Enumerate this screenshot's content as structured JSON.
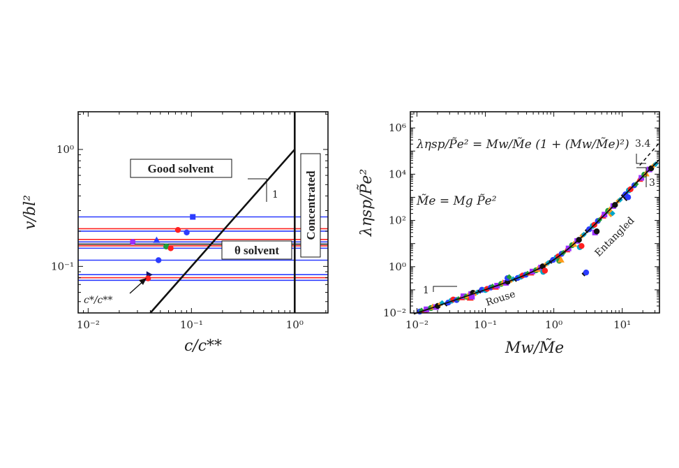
{
  "left_panel": {
    "ylabel": "v/bl²",
    "xlabel": "c/c**",
    "x_ticks": [
      {
        "v": 0.01,
        "label": "10⁻²"
      },
      {
        "v": 0.1,
        "label": "10⁻¹"
      },
      {
        "v": 1,
        "label": "10⁰"
      }
    ],
    "y_ticks": [
      {
        "v": 0.1,
        "label": "10⁻¹"
      },
      {
        "v": 1,
        "label": "10⁰"
      }
    ],
    "good_solvent_label": "Good solvent",
    "theta_solvent_label": "θ solvent",
    "concentrated_label": "Concentrated",
    "slope_label": "1",
    "arrow_label": "c*/c**"
  },
  "right_panel": {
    "ylabel": "ληsp/P̃e²",
    "xlabel": "Mw/M̃e",
    "x_ticks": [
      {
        "v": 0.01,
        "label": "10⁻²"
      },
      {
        "v": 0.1,
        "label": "10⁻¹"
      },
      {
        "v": 1,
        "label": "10⁰"
      },
      {
        "v": 10,
        "label": "10¹"
      }
    ],
    "y_ticks": [
      {
        "v": 0.01,
        "label": "10⁻²"
      },
      {
        "v": 1,
        "label": "10⁰"
      },
      {
        "v": 100,
        "label": "10²"
      },
      {
        "v": 10000,
        "label": "10⁴"
      },
      {
        "v": 1000000,
        "label": "10⁶"
      }
    ],
    "equation_main": "ληsp/P̃e² = Mw/M̃e (1 + (Mw/M̃e)²)",
    "equation_me": "M̃e = Mg P̃e²",
    "rouse_label": "Rouse",
    "entangled_label": "Entangled",
    "slope_1_label": "1",
    "slope_3_label": "3",
    "slope_34_label": "3.4"
  },
  "chart_data": [
    {
      "type": "line",
      "panel": "left",
      "xscale": "log",
      "yscale": "log",
      "xlim": [
        0.008,
        2.1
      ],
      "ylim": [
        0.04,
        2.1
      ],
      "xlabel": "c/c**",
      "ylabel": "v/bl²",
      "boundaries": {
        "diagonal": [
          [
            0.035,
            0.035
          ],
          [
            1.0,
            1.0
          ]
        ],
        "vertical_x": 1.0
      },
      "horizontal_lines": [
        {
          "y": 0.265,
          "color": "#2b3cff"
        },
        {
          "y": 0.21,
          "color": "#ff2020"
        },
        {
          "y": 0.2,
          "color": "#2b3cff"
        },
        {
          "y": 0.17,
          "color": "#ff2020"
        },
        {
          "y": 0.162,
          "color": "#2b3cff"
        },
        {
          "y": 0.155,
          "color": "#111111"
        },
        {
          "y": 0.15,
          "color": "#ff2020"
        },
        {
          "y": 0.143,
          "color": "#2b3cff"
        },
        {
          "y": 0.113,
          "color": "#2b3cff"
        },
        {
          "y": 0.085,
          "color": "#2b3cff"
        },
        {
          "y": 0.08,
          "color": "#ff2020"
        },
        {
          "y": 0.076,
          "color": "#2b3cff"
        }
      ],
      "points": [
        {
          "x": 0.103,
          "y": 0.265,
          "color": "#2b3cff",
          "marker": "square"
        },
        {
          "x": 0.074,
          "y": 0.205,
          "color": "#ff2020",
          "marker": "circle"
        },
        {
          "x": 0.09,
          "y": 0.195,
          "color": "#2b3cff",
          "marker": "circle"
        },
        {
          "x": 0.027,
          "y": 0.162,
          "color": "#9b30ff",
          "marker": "circle"
        },
        {
          "x": 0.046,
          "y": 0.168,
          "color": "#2b3cff",
          "marker": "triangle"
        },
        {
          "x": 0.057,
          "y": 0.148,
          "color": "#1f9e3a",
          "marker": "circle"
        },
        {
          "x": 0.063,
          "y": 0.143,
          "color": "#ff2020",
          "marker": "circle"
        },
        {
          "x": 0.048,
          "y": 0.113,
          "color": "#2b3cff",
          "marker": "circle"
        },
        {
          "x": 0.039,
          "y": 0.085,
          "color": "#111166",
          "marker": "triangle-right"
        },
        {
          "x": 0.038,
          "y": 0.079,
          "color": "#ff2020",
          "marker": "circle"
        }
      ]
    },
    {
      "type": "scatter",
      "panel": "right",
      "xscale": "log",
      "yscale": "log",
      "xlim": [
        0.008,
        35
      ],
      "ylim": [
        0.01,
        5000000
      ],
      "xlabel": "Mw/M̃e",
      "ylabel": "ληsp/P̃e²",
      "fit_curve": "y = x (1 + x^2)",
      "fit_range": [
        0.009,
        35
      ],
      "dashed_curve": "y = 1.3 x^3.4",
      "dashed_range": [
        18,
        35
      ],
      "series_colors": [
        "#2b3cff",
        "#ff2020",
        "#1f9e3a",
        "#9b30ff",
        "#ff9a1a",
        "#111111",
        "#00a5c8"
      ],
      "points": [
        {
          "x": 0.011,
          "y": 0.0115
        },
        {
          "x": 0.013,
          "y": 0.0128
        },
        {
          "x": 0.016,
          "y": 0.0163
        },
        {
          "x": 0.019,
          "y": 0.018
        },
        {
          "x": 0.022,
          "y": 0.024
        },
        {
          "x": 0.027,
          "y": 0.025
        },
        {
          "x": 0.032,
          "y": 0.034
        },
        {
          "x": 0.038,
          "y": 0.036
        },
        {
          "x": 0.045,
          "y": 0.047
        },
        {
          "x": 0.053,
          "y": 0.05
        },
        {
          "x": 0.062,
          "y": 0.066
        },
        {
          "x": 0.072,
          "y": 0.07
        },
        {
          "x": 0.084,
          "y": 0.09
        },
        {
          "x": 0.1,
          "y": 0.098
        },
        {
          "x": 0.12,
          "y": 0.125
        },
        {
          "x": 0.14,
          "y": 0.135
        },
        {
          "x": 0.17,
          "y": 0.18
        },
        {
          "x": 0.2,
          "y": 0.2
        },
        {
          "x": 0.24,
          "y": 0.26
        },
        {
          "x": 0.28,
          "y": 0.29
        },
        {
          "x": 0.33,
          "y": 0.37
        },
        {
          "x": 0.39,
          "y": 0.45
        },
        {
          "x": 0.46,
          "y": 0.55
        },
        {
          "x": 0.55,
          "y": 0.7
        },
        {
          "x": 0.65,
          "y": 0.92
        },
        {
          "x": 0.78,
          "y": 1.3
        },
        {
          "x": 0.92,
          "y": 1.75
        },
        {
          "x": 1.1,
          "y": 2.5
        },
        {
          "x": 1.3,
          "y": 3.6
        },
        {
          "x": 1.55,
          "y": 5.5
        },
        {
          "x": 1.85,
          "y": 8.5
        },
        {
          "x": 2.2,
          "y": 13
        },
        {
          "x": 2.6,
          "y": 22
        },
        {
          "x": 3.1,
          "y": 37
        },
        {
          "x": 3.7,
          "y": 58
        },
        {
          "x": 4.4,
          "y": 95
        },
        {
          "x": 5.2,
          "y": 160
        },
        {
          "x": 6.2,
          "y": 260
        },
        {
          "x": 7.4,
          "y": 420
        },
        {
          "x": 8.8,
          "y": 700
        },
        {
          "x": 10.5,
          "y": 1200
        },
        {
          "x": 12.5,
          "y": 2000
        },
        {
          "x": 15,
          "y": 3300
        },
        {
          "x": 18,
          "y": 6200
        },
        {
          "x": 21,
          "y": 9500
        },
        {
          "x": 25,
          "y": 16000
        },
        {
          "x": 29,
          "y": 24000
        },
        {
          "x": 2.8,
          "y": 0.5
        },
        {
          "x": 2.4,
          "y": 7
        },
        {
          "x": 0.21,
          "y": 0.32
        },
        {
          "x": 0.06,
          "y": 0.045
        },
        {
          "x": 1.2,
          "y": 1.8
        },
        {
          "x": 4.0,
          "y": 30
        },
        {
          "x": 6.8,
          "y": 180
        },
        {
          "x": 11.5,
          "y": 900
        },
        {
          "x": 0.7,
          "y": 0.6
        }
      ]
    }
  ]
}
